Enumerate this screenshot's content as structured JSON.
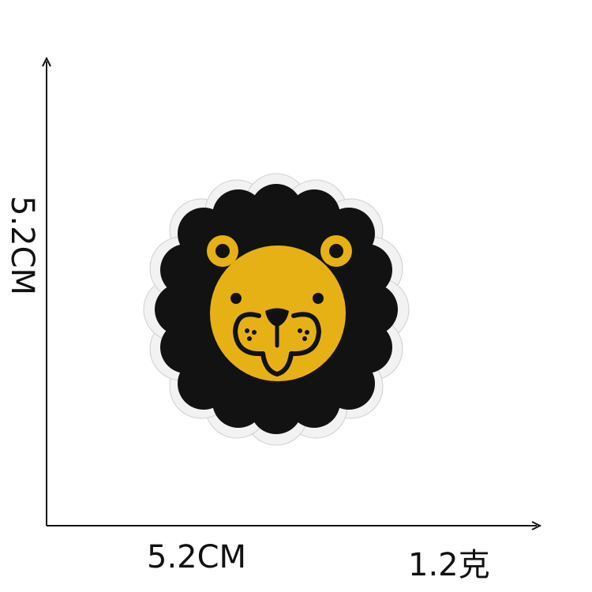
{
  "dimensions": {
    "width_label": "5.2CM",
    "height_label": "5.2CM",
    "weight_label": "1.2克"
  },
  "colors": {
    "axis": "#111111",
    "patch_border": "#f2f2f2",
    "patch_fill": "#121212",
    "face_fill": "#e6b114",
    "face_detail": "#111111"
  },
  "icons": {
    "product": "lion-face-patch-icon"
  }
}
